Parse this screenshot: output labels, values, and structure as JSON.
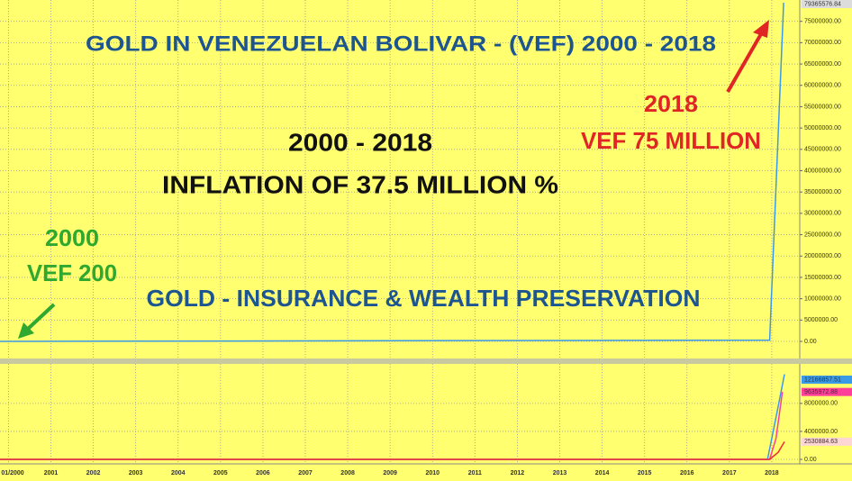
{
  "chart_data": [
    {
      "type": "line",
      "title": "GOLD IN VENEZUELAN BOLIVAR - (VEF)  2000 - 2018",
      "annotations": [
        "2000 - 2018",
        "INFLATION OF 37.5 MILLION %",
        "2018",
        "VEF 75 MILLION",
        "2000",
        "VEF 200",
        "GOLD - INSURANCE & WEALTH PRESERVATION"
      ],
      "xlim": [
        1999.8,
        2018.66
      ],
      "ylim": [
        0,
        80000000
      ],
      "yticks": [
        {
          "value": 0,
          "label": "0.00"
        },
        {
          "value": 5000000,
          "label": "5000000.00"
        },
        {
          "value": 10000000,
          "label": "10000000.00"
        },
        {
          "value": 15000000,
          "label": "15000000.00"
        },
        {
          "value": 20000000,
          "label": "20000000.00"
        },
        {
          "value": 25000000,
          "label": "25000000.00"
        },
        {
          "value": 30000000,
          "label": "30000000.00"
        },
        {
          "value": 35000000,
          "label": "35000000.00"
        },
        {
          "value": 40000000,
          "label": "40000000.00"
        },
        {
          "value": 45000000,
          "label": "45000000.00"
        },
        {
          "value": 50000000,
          "label": "50000000.00"
        },
        {
          "value": 55000000,
          "label": "55000000.00"
        },
        {
          "value": 60000000,
          "label": "60000000.00"
        },
        {
          "value": 65000000,
          "label": "65000000.00"
        },
        {
          "value": 70000000,
          "label": "70000000.00"
        },
        {
          "value": 75000000,
          "label": "75000000.00"
        }
      ],
      "grid": true,
      "series": [
        {
          "color": "#3a9ae8",
          "x": [
            1999.8,
            2017.95,
            2018.28
          ],
          "values": [
            200,
            300000,
            79365576.84
          ],
          "value_labels": [
            null,
            null,
            "79365576.84"
          ]
        }
      ]
    },
    {
      "type": "line",
      "xlim": [
        1999.8,
        2018.66
      ],
      "ylim": [
        0,
        13000000
      ],
      "xticks": [
        {
          "value": 2000,
          "label": "01/2000"
        },
        2001,
        2002,
        2003,
        2004,
        2005,
        2006,
        2007,
        2008,
        2009,
        2010,
        2011,
        2012,
        2013,
        2014,
        2015,
        2016,
        2017,
        2018
      ],
      "yticks": [
        {
          "value": 0,
          "label": "0.00"
        },
        {
          "value": 4000000,
          "label": "4000000.00"
        },
        {
          "value": 8000000,
          "label": "8000000.00"
        }
      ],
      "grid": true,
      "series": [
        {
          "color": "#3a9ae8",
          "x": [
            1999.8,
            2017.9,
            2018.1,
            2018.3
          ],
          "values": [
            0,
            0,
            6000000,
            12166857.51
          ],
          "value_labels": [
            null,
            null,
            null,
            "12166857.51"
          ]
        },
        {
          "color": "#ff3f9a",
          "x": [
            1999.8,
            2017.95,
            2018.1,
            2018.25
          ],
          "values": [
            0,
            0,
            3000000,
            9635972.88
          ],
          "value_labels": [
            null,
            null,
            null,
            "9635972.88"
          ]
        },
        {
          "color": "#e83030",
          "x": [
            1999.8,
            2017.95,
            2018.15,
            2018.3
          ],
          "values": [
            0,
            0,
            1000000,
            2530884.63
          ],
          "value_labels": [
            null,
            null,
            null,
            "2530884.63"
          ]
        }
      ]
    }
  ]
}
